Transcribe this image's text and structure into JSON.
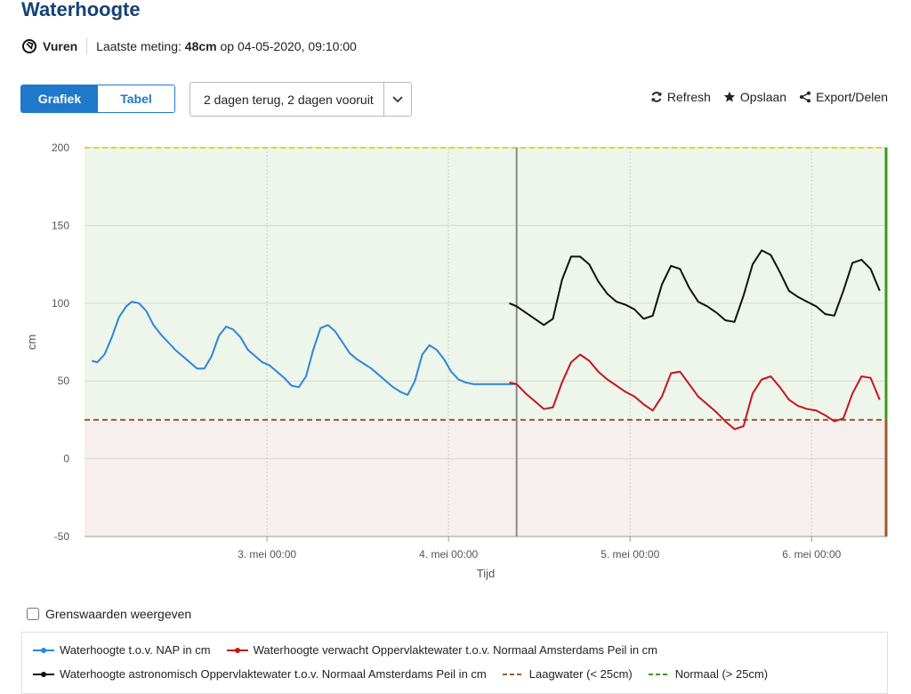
{
  "header": {
    "title": "Waterhoogte",
    "location": "Vuren",
    "last_measurement_label": "Laatste meting:",
    "last_measurement_value": "48cm",
    "last_measurement_on": "op",
    "last_measurement_time": "04-05-2020, 09:10:00"
  },
  "toolbar": {
    "tabs": [
      {
        "label": "Grafiek",
        "active": true
      },
      {
        "label": "Tabel",
        "active": false
      }
    ],
    "period_select": "2 dagen terug, 2 dagen vooruit",
    "refresh_label": "Refresh",
    "save_label": "Opslaan",
    "export_label": "Export/Delen"
  },
  "thresholds_checkbox": {
    "label": "Grenswaarden weergeven",
    "checked": false
  },
  "legend": [
    {
      "label": "Waterhoogte t.o.v. NAP in cm",
      "color": "#2b87d8",
      "style": "line-dot"
    },
    {
      "label": "Waterhoogte verwacht Oppervlaktewater t.o.v. Normaal Amsterdams Peil in cm",
      "color": "#c3161c",
      "style": "line-dot"
    },
    {
      "label": "Waterhoogte astronomisch Oppervlaktewater t.o.v. Normaal Amsterdams Peil in cm",
      "color": "#111111",
      "style": "line-dot"
    },
    {
      "label": "Laagwater (< 25cm)",
      "color": "#9a5a2a",
      "style": "dashed"
    },
    {
      "label": "Normaal (> 25cm)",
      "color": "#3a9a1a",
      "style": "dashed"
    }
  ],
  "chart_data": {
    "type": "line",
    "xlabel": "Tijd",
    "ylabel": "cm",
    "ylim": [
      -50,
      200
    ],
    "yticks": [
      -50,
      0,
      50,
      100,
      150,
      200
    ],
    "xlim": [
      -2.38,
      2.04
    ],
    "xticks": [
      {
        "label": "3. mei 00:00",
        "value": -1.375
      },
      {
        "label": "4. mei 00:00",
        "value": -0.375
      },
      {
        "label": "5. mei 00:00",
        "value": 0.625
      },
      {
        "label": "6. mei 00:00",
        "value": 1.625
      }
    ],
    "now_x": 0,
    "grid": true,
    "bands": [
      {
        "from": 25,
        "to": 200,
        "color": "#eef5ea"
      },
      {
        "from": -50,
        "to": 25,
        "color": "#f6efee"
      }
    ],
    "threshold_lines": [
      {
        "y": 200,
        "color": "#d8d820"
      },
      {
        "y": 25,
        "color": "#9a5a2a"
      }
    ],
    "series": [
      {
        "name": "Waterhoogte t.o.v. NAP in cm",
        "color": "#2b87d8",
        "x": [
          -2.34,
          -2.31,
          -2.27,
          -2.23,
          -2.19,
          -2.15,
          -2.12,
          -2.08,
          -2.04,
          -2.0,
          -1.96,
          -1.92,
          -1.88,
          -1.84,
          -1.8,
          -1.76,
          -1.72,
          -1.68,
          -1.64,
          -1.6,
          -1.56,
          -1.52,
          -1.48,
          -1.44,
          -1.4,
          -1.36,
          -1.32,
          -1.28,
          -1.24,
          -1.2,
          -1.16,
          -1.12,
          -1.08,
          -1.04,
          -1.0,
          -0.96,
          -0.92,
          -0.88,
          -0.84,
          -0.8,
          -0.76,
          -0.72,
          -0.68,
          -0.64,
          -0.6,
          -0.56,
          -0.52,
          -0.48,
          -0.44,
          -0.4,
          -0.36,
          -0.32,
          -0.28,
          -0.24,
          -0.2,
          -0.16,
          -0.12,
          -0.08,
          -0.04,
          0.0
        ],
        "y": [
          63,
          62,
          67,
          78,
          91,
          98,
          101,
          100,
          95,
          86,
          80,
          75,
          70,
          66,
          62,
          58,
          58,
          66,
          79,
          85,
          83,
          78,
          70,
          66,
          62,
          60,
          56,
          52,
          47,
          46,
          53,
          70,
          84,
          86,
          82,
          75,
          68,
          64,
          61,
          58,
          54,
          50,
          46,
          43,
          41,
          50,
          67,
          73,
          70,
          64,
          56,
          51,
          49,
          48,
          48,
          48,
          48,
          48,
          48,
          48
        ]
      },
      {
        "name": "Waterhoogte verwacht Oppervlaktewater t.o.v. Normaal Amsterdams Peil in cm",
        "color": "#c3161c",
        "x": [
          -0.04,
          0.0,
          0.05,
          0.1,
          0.15,
          0.2,
          0.25,
          0.3,
          0.35,
          0.4,
          0.45,
          0.5,
          0.55,
          0.6,
          0.65,
          0.7,
          0.75,
          0.8,
          0.85,
          0.9,
          0.95,
          1.0,
          1.05,
          1.1,
          1.15,
          1.2,
          1.25,
          1.3,
          1.35,
          1.4,
          1.45,
          1.5,
          1.55,
          1.6,
          1.65,
          1.7,
          1.75,
          1.8,
          1.85,
          1.9,
          1.95,
          2.0
        ],
        "y": [
          49,
          48,
          42,
          37,
          32,
          33,
          49,
          62,
          67,
          63,
          56,
          51,
          47,
          43,
          40,
          35,
          31,
          40,
          55,
          56,
          48,
          40,
          35,
          30,
          24,
          19,
          21,
          42,
          51,
          53,
          46,
          38,
          34,
          32,
          31,
          28,
          24,
          26,
          42,
          53,
          52,
          38
        ]
      },
      {
        "name": "Waterhoogte astronomisch Oppervlaktewater t.o.v. Normaal Amsterdams Peil in cm",
        "color": "#111111",
        "x": [
          -0.04,
          0.0,
          0.05,
          0.1,
          0.15,
          0.2,
          0.25,
          0.3,
          0.35,
          0.4,
          0.45,
          0.5,
          0.55,
          0.6,
          0.65,
          0.7,
          0.75,
          0.8,
          0.85,
          0.9,
          0.95,
          1.0,
          1.05,
          1.1,
          1.15,
          1.2,
          1.25,
          1.3,
          1.35,
          1.4,
          1.45,
          1.5,
          1.55,
          1.6,
          1.65,
          1.7,
          1.75,
          1.8,
          1.85,
          1.9,
          1.95,
          2.0
        ],
        "y": [
          100,
          98,
          94,
          90,
          86,
          90,
          115,
          130,
          130,
          125,
          114,
          106,
          101,
          99,
          96,
          90,
          92,
          112,
          124,
          122,
          110,
          101,
          98,
          94,
          89,
          88,
          105,
          125,
          134,
          131,
          120,
          108,
          104,
          101,
          98,
          93,
          92,
          108,
          126,
          128,
          122,
          108
        ]
      }
    ]
  }
}
